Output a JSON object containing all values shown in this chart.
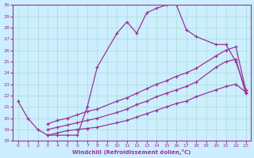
{
  "xlabel": "Windchill (Refroidissement éolien,°C)",
  "bg_color": "#cceeff",
  "grid_color": "#aaddcc",
  "line_color": "#993399",
  "xlim": [
    -0.5,
    23.5
  ],
  "ylim": [
    18,
    30
  ],
  "xticks": [
    0,
    1,
    2,
    3,
    4,
    5,
    6,
    7,
    8,
    9,
    10,
    11,
    12,
    13,
    14,
    15,
    16,
    17,
    18,
    19,
    20,
    21,
    22,
    23
  ],
  "yticks": [
    18,
    19,
    20,
    21,
    22,
    23,
    24,
    25,
    26,
    27,
    28,
    29,
    30
  ],
  "series": [
    {
      "x": [
        0,
        1,
        2,
        3,
        4,
        5,
        6,
        7,
        8,
        10,
        11,
        12,
        13,
        14,
        15,
        16,
        17,
        18,
        20,
        21,
        22,
        23
      ],
      "y": [
        21.5,
        20.0,
        19.0,
        18.5,
        18.5,
        18.5,
        18.5,
        21.0,
        24.5,
        27.5,
        28.5,
        27.5,
        29.3,
        29.7,
        30.0,
        30.0,
        27.8,
        27.2,
        26.5,
        26.5,
        25.0,
        22.5
      ]
    },
    {
      "x": [
        3,
        4,
        5,
        6,
        7,
        8,
        10,
        11,
        12,
        13,
        14,
        15,
        16,
        17,
        18,
        20,
        21,
        22,
        23
      ],
      "y": [
        19.5,
        19.8,
        20.0,
        20.3,
        20.6,
        20.8,
        21.5,
        21.8,
        22.2,
        22.6,
        23.0,
        23.3,
        23.7,
        24.0,
        24.4,
        25.5,
        26.0,
        26.3,
        22.5
      ]
    },
    {
      "x": [
        3,
        4,
        5,
        6,
        7,
        8,
        10,
        11,
        12,
        13,
        14,
        15,
        16,
        17,
        18,
        20,
        21,
        22,
        23
      ],
      "y": [
        19.0,
        19.2,
        19.4,
        19.6,
        19.8,
        20.0,
        20.5,
        20.8,
        21.2,
        21.5,
        21.9,
        22.2,
        22.5,
        22.8,
        23.2,
        24.5,
        25.0,
        25.2,
        22.2
      ]
    },
    {
      "x": [
        3,
        4,
        5,
        6,
        7,
        8,
        10,
        11,
        12,
        13,
        14,
        15,
        16,
        17,
        18,
        20,
        21,
        22,
        23
      ],
      "y": [
        18.5,
        18.7,
        18.9,
        19.0,
        19.1,
        19.2,
        19.6,
        19.8,
        20.1,
        20.4,
        20.7,
        21.0,
        21.3,
        21.5,
        21.9,
        22.5,
        22.8,
        23.0,
        22.3
      ]
    }
  ]
}
